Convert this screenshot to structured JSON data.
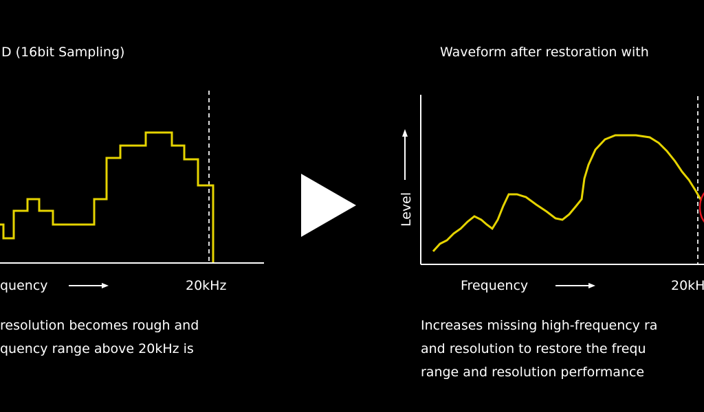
{
  "left_panel": {
    "title": "D (16bit Sampling)",
    "x_axis_label": "quency",
    "marker_label": "20kHz",
    "caption": [
      "resolution becomes rough and",
      "quency range above 20kHz is"
    ]
  },
  "right_panel": {
    "title": "Waveform after restoration with",
    "y_axis_label": "Level",
    "x_axis_label": "Frequency",
    "marker_label": "20kH",
    "caption": [
      "Increases missing high-frequency ra",
      "and resolution to restore the frequ",
      "range and resolution performance"
    ]
  }
}
